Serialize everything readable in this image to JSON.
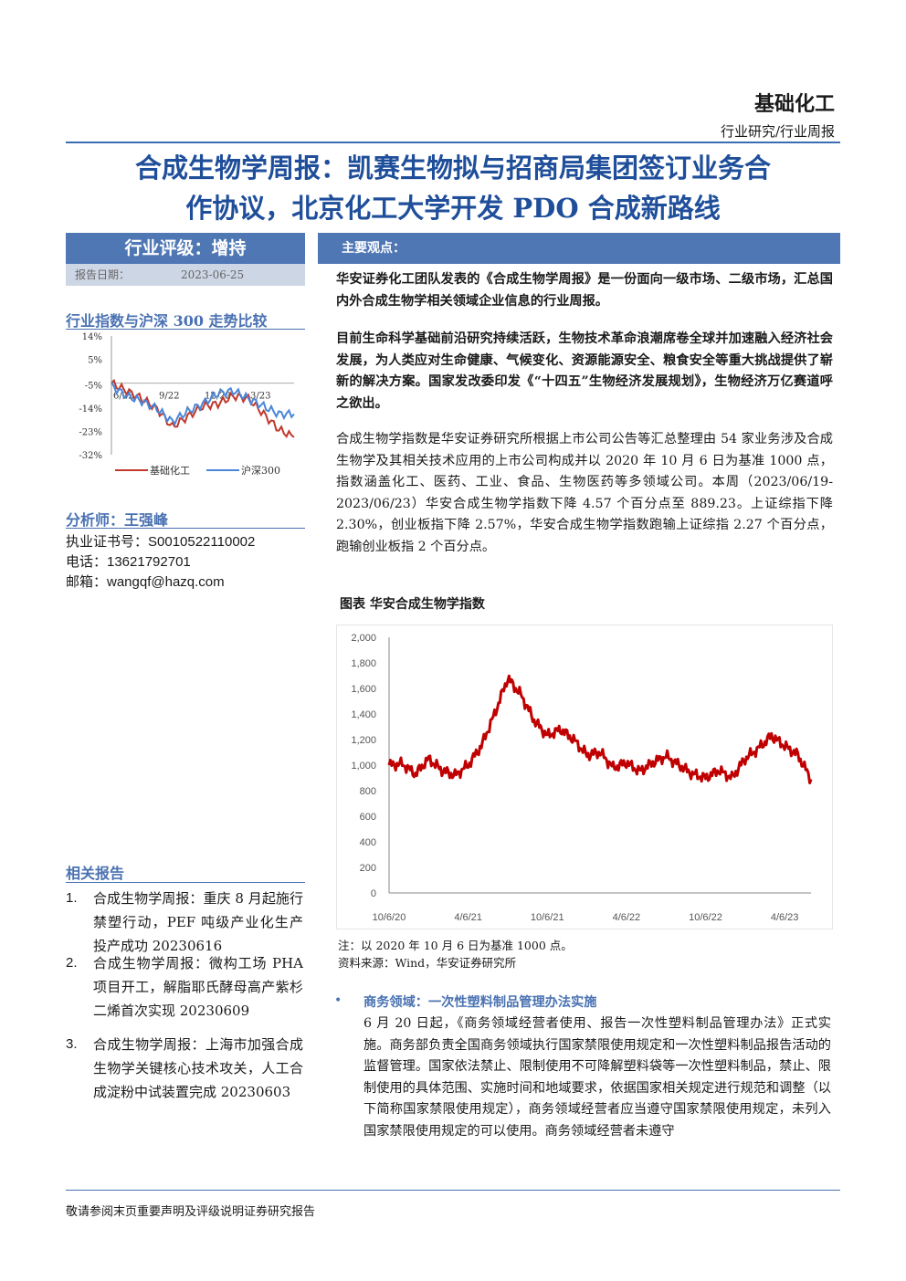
{
  "header": {
    "sector": "基础化工",
    "report_type": "行业研究/行业周报"
  },
  "title": {
    "line1": "合成生物学周报：凯赛生物拟与招商局集团签订业务合",
    "line2": "作协议，北京化工大学开发 PDO 合成新路线"
  },
  "sidebar": {
    "rating": "行业评级：增持",
    "report_date_label": "报告日期：",
    "report_date": "2023-06-25",
    "index_chart_title": "行业指数与沪深 300 走势比较",
    "analyst_heading": "分析师：王强峰",
    "certificate": "执业证书号：S0010522110002",
    "phone": "电话：13621792701",
    "email": "邮箱：wangqf@hazq.com",
    "related_heading": "相关报告",
    "related": [
      {
        "num": "1.",
        "text": "合成生物学周报：重庆 8 月起施行禁塑行动，PEF 吨级产业化生产投产成功 20230616"
      },
      {
        "num": "2.",
        "text": "合成生物学周报：微构工场 PHA 项目开工，解脂耶氏酵母高产紫杉二烯首次实现 20230609"
      },
      {
        "num": "3.",
        "text": "合成生物学周报：上海市加强合成生物学关键核心技术攻关，人工合成淀粉中试装置完成 20230603"
      }
    ]
  },
  "main": {
    "views_label": "主要观点：",
    "para1": "华安证券化工团队发表的《合成生物学周报》是一份面向一级市场、二级市场，汇总国内外合成生物学相关领域企业信息的行业周报。",
    "para2": "目前生命科学基础前沿研究持续活跃，生物技术革命浪潮席卷全球并加速融入经济社会发展，为人类应对生命健康、气候变化、资源能源安全、粮食安全等重大挑战提供了崭新的解决方案。国家发改委印发《“十四五”生物经济发展规划》，生物经济万亿赛道呼之欲出。",
    "para3": "合成生物学指数是华安证券研究所根据上市公司公告等汇总整理由 54 家业务涉及合成生物学及其相关技术应用的上市公司构成并以 2020 年 10 月 6 日为基准 1000 点，指数涵盖化工、医药、工业、食品、生物医药等多领域公司。本周（2023/06/19-2023/06/23）华安合成生物学指数下降 4.57 个百分点至 889.23。上证综指下降 2.30%，创业板指下降 2.57%，华安合成生物学指数跑输上证综指 2.27 个百分点，跑输创业板指 2 个百分点。",
    "chart_caption": "图表 华安合成生物学指数",
    "chart_note": "注：以 2020 年 10 月 6 日为基准 1000 点。",
    "chart_source": "资料来源：Wind，华安证券研究所",
    "bullet_heading": "商务领域：一次性塑料制品管理办法实施",
    "bullet_body": "6 月 20 日起，《商务领域经营者使用、报告一次性塑料制品管理办法》正式实施。商务部负责全国商务领域执行国家禁限使用规定和一次性塑料制品报告活动的监督管理。国家依法禁止、限制使用不可降解塑料袋等一次性塑料制品，禁止、限制使用的具体范围、实施时间和地域要求，依据国家相关规定进行规范和调整（以下简称国家禁限使用规定），商务领域经营者应当遵守国家禁限使用规定，未列入国家禁限使用规定的可以使用。商务领域经营者未遵守"
  },
  "footer": {
    "text": "敬请参阅末页重要声明及评级说明证券研究报告"
  },
  "chart_data": [
    {
      "type": "line",
      "title": "行业指数与沪深 300 走势比较",
      "x_ticks": [
        "6/22",
        "9/22",
        "12/22",
        "3/23"
      ],
      "y_ticks": [
        "14%",
        "5%",
        "-5%",
        "-14%",
        "-23%",
        "-32%"
      ],
      "ylim": [
        -32,
        14
      ],
      "colors": {
        "基础化工": "#c0392b",
        "沪深300": "#4a86d8"
      },
      "x": [
        "6/22",
        "7/22",
        "8/22",
        "9/22",
        "10/22",
        "11/22",
        "12/22",
        "1/23",
        "2/23",
        "3/23",
        "4/23",
        "5/23",
        "6/23"
      ],
      "series": [
        {
          "name": "基础化工",
          "values": [
            0,
            -3,
            -6,
            -10,
            -17,
            -13,
            -9,
            -8,
            -5,
            -6,
            -12,
            -18,
            -21
          ]
        },
        {
          "name": "沪深300",
          "values": [
            -1,
            -5,
            -7,
            -10,
            -15,
            -11,
            -8,
            -4,
            -3,
            -6,
            -9,
            -12,
            -12
          ]
        }
      ],
      "legend": "bottom",
      "grid": false
    },
    {
      "type": "line",
      "title": "图表 华安合成生物学指数",
      "x_ticks": [
        "10/6/20",
        "4/6/21",
        "10/6/21",
        "4/6/22",
        "10/6/22",
        "4/6/23"
      ],
      "y_ticks": [
        "2,000",
        "1,800",
        "1,600",
        "1,400",
        "1,200",
        "1,000",
        "800",
        "600",
        "400",
        "200",
        "0"
      ],
      "ylim": [
        0,
        2000
      ],
      "color": "#c00000",
      "x": [
        "10/6/20",
        "11/6/20",
        "12/6/20",
        "1/6/21",
        "2/6/21",
        "3/6/21",
        "4/6/21",
        "5/6/21",
        "6/6/21",
        "7/6/21",
        "8/6/21",
        "9/6/21",
        "10/6/21",
        "11/6/21",
        "12/6/21",
        "1/6/22",
        "2/6/22",
        "3/6/22",
        "4/6/22",
        "5/6/22",
        "6/6/22",
        "7/6/22",
        "8/6/22",
        "9/6/22",
        "10/6/22",
        "11/6/22",
        "12/6/22",
        "1/6/23",
        "2/6/23",
        "3/6/23",
        "4/6/23",
        "5/6/23",
        "6/23/23"
      ],
      "series": [
        {
          "name": "华安合成生物学指数",
          "values": [
            1000,
            1010,
            930,
            1050,
            960,
            920,
            1000,
            1150,
            1400,
            1680,
            1550,
            1350,
            1230,
            1280,
            1200,
            1080,
            1100,
            980,
            1020,
            950,
            1020,
            1070,
            1000,
            930,
            900,
            960,
            900,
            1050,
            1130,
            1230,
            1150,
            1080,
            889.23
          ]
        }
      ],
      "grid": false
    }
  ]
}
